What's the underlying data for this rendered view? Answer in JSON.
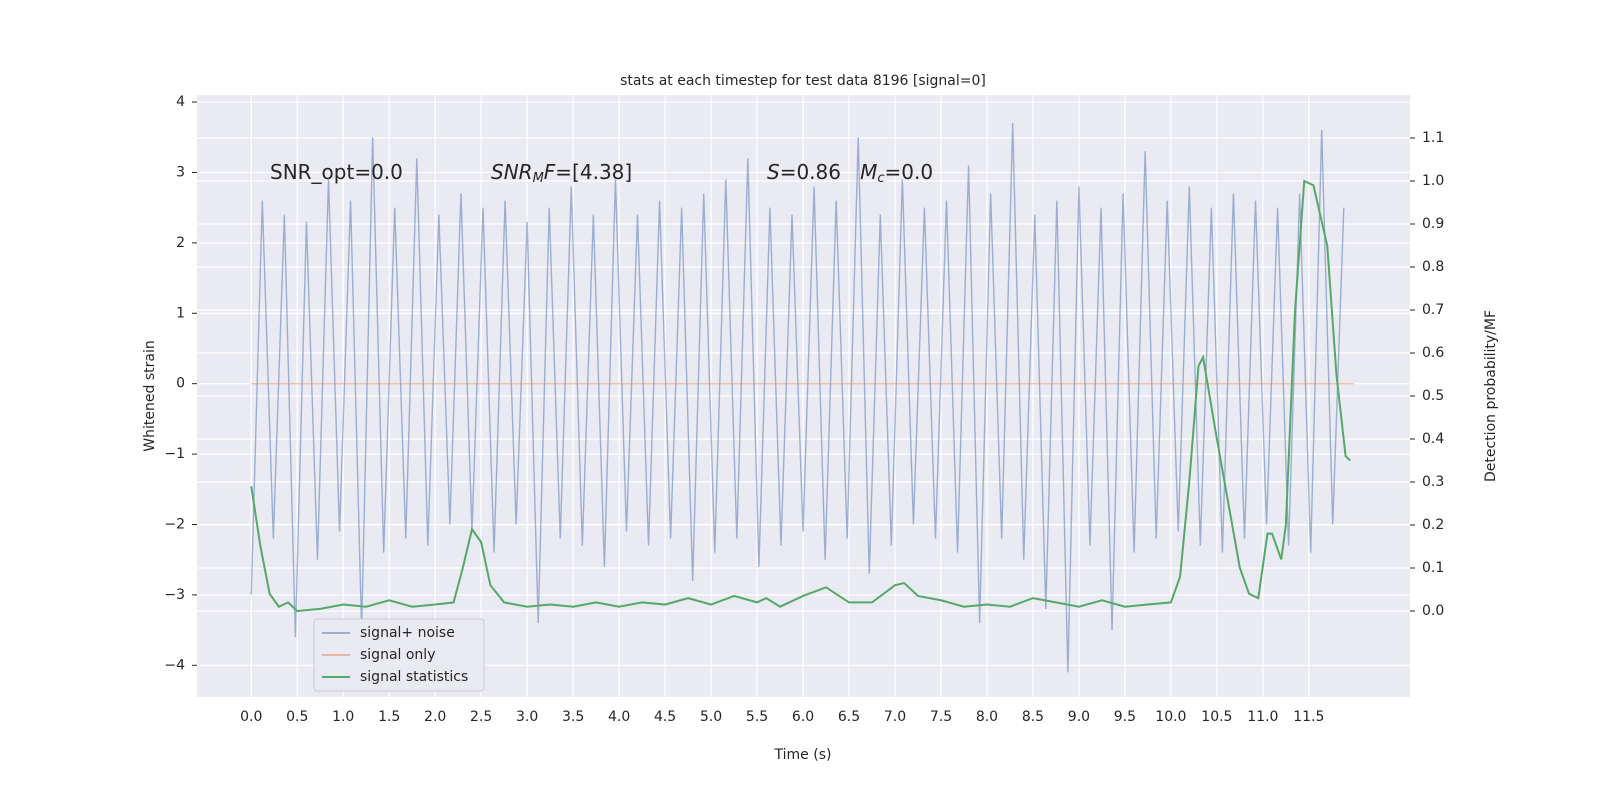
{
  "chart_data": {
    "type": "line",
    "title": "stats at each timestep for test data 8196 [signal=0]",
    "xlabel": "Time (s)",
    "ylabel": "Whitened strain",
    "y2label": "Detection probability/MF",
    "xlim": [
      -0.59,
      12.6
    ],
    "ylim": [
      -4.45,
      4.1
    ],
    "y2lim": [
      -0.2,
      1.2
    ],
    "xticks": [
      {
        "value": 0,
        "label": "0.0"
      },
      0.5,
      {
        "value": 1,
        "label": "1.0"
      },
      1.5,
      {
        "value": 2,
        "label": "2.0"
      },
      2.5,
      {
        "value": 3,
        "label": "3.0"
      },
      3.5,
      {
        "value": 4,
        "label": "4.0"
      },
      4.5,
      {
        "value": 5,
        "label": "5.0"
      },
      5.5,
      {
        "value": 6,
        "label": "6.0"
      },
      6.5,
      {
        "value": 7,
        "label": "7.0"
      },
      7.5,
      {
        "value": 8,
        "label": "8.0"
      },
      8.5,
      {
        "value": 9,
        "label": "9.0"
      },
      9.5,
      {
        "value": 10,
        "label": "10.0"
      },
      10.5,
      {
        "value": 11,
        "label": "11.0"
      },
      11.5
    ],
    "yticks": [
      {
        "value": -4,
        "label": "−4"
      },
      {
        "value": -3,
        "label": "−3"
      },
      {
        "value": -2,
        "label": "−2"
      },
      {
        "value": -1,
        "label": "−1"
      },
      0,
      1,
      2,
      3,
      4
    ],
    "y2ticks": [
      {
        "value": 0,
        "label": "0.0"
      },
      0.1,
      0.2,
      0.3,
      0.4,
      0.5,
      0.6,
      0.7,
      0.8,
      0.9,
      {
        "value": 1,
        "label": "1.0"
      },
      1.1
    ],
    "grid": true,
    "legend": "lower left",
    "annotations": [
      [
        {
          "text": "SNR_opt=0.0"
        }
      ],
      [
        {
          "text": "SNR",
          "italic": true
        },
        {
          "text": "M",
          "italic": true,
          "sub": true
        },
        {
          "text": "F",
          "italic": true
        },
        {
          "text": "=[4.38]"
        }
      ],
      [
        {
          "text": "S",
          "italic": true
        },
        {
          "text": "=0.86   "
        },
        {
          "text": "M",
          "italic": true
        },
        {
          "text": "c",
          "italic": true,
          "sub": true
        },
        {
          "text": "=0.0"
        }
      ]
    ],
    "series": [
      {
        "name": "signal+ noise",
        "color": "#4c72b0",
        "opacity": 0.5,
        "x": [
          0,
          0.12,
          0.24,
          0.36,
          0.48,
          0.6,
          0.72,
          0.84,
          0.96,
          1.08,
          1.2,
          1.32,
          1.44,
          1.56,
          1.68,
          1.8,
          1.92,
          2.04,
          2.16,
          2.28,
          2.4,
          2.52,
          2.64,
          2.76,
          2.88,
          3,
          3.12,
          3.24,
          3.36,
          3.48,
          3.6,
          3.72,
          3.84,
          3.96,
          4.08,
          4.2,
          4.32,
          4.44,
          4.56,
          4.68,
          4.8,
          4.92,
          5.04,
          5.16,
          5.28,
          5.4,
          5.52,
          5.64,
          5.76,
          5.88,
          6,
          6.12,
          6.24,
          6.36,
          6.48,
          6.6,
          6.72,
          6.84,
          6.96,
          7.08,
          7.2,
          7.32,
          7.44,
          7.56,
          7.68,
          7.8,
          7.92,
          8.04,
          8.16,
          8.28,
          8.4,
          8.52,
          8.64,
          8.76,
          8.88,
          9,
          9.12,
          9.24,
          9.36,
          9.48,
          9.6,
          9.72,
          9.84,
          9.96,
          10.08,
          10.2,
          10.32,
          10.44,
          10.56,
          10.68,
          10.8,
          10.92,
          11.04,
          11.16,
          11.28,
          11.4,
          11.52,
          11.64,
          11.76,
          11.88
        ],
        "values": [
          -3.0,
          2.6,
          -2.2,
          2.4,
          -3.6,
          2.3,
          -2.5,
          2.9,
          -2.1,
          2.6,
          -3.5,
          3.5,
          -2.4,
          2.5,
          -2.2,
          3.2,
          -2.3,
          2.4,
          -2.0,
          2.7,
          -2.1,
          2.5,
          -2.4,
          2.6,
          -2.0,
          2.3,
          -3.4,
          2.5,
          -2.2,
          2.8,
          -2.3,
          2.4,
          -2.6,
          2.9,
          -2.1,
          2.4,
          -2.3,
          2.6,
          -2.2,
          2.5,
          -2.8,
          2.7,
          -2.4,
          2.9,
          -2.2,
          3.2,
          -2.6,
          2.5,
          -2.3,
          2.4,
          -2.1,
          2.8,
          -2.5,
          2.6,
          -2.2,
          3.5,
          -2.7,
          2.4,
          -2.3,
          2.9,
          -2.0,
          2.5,
          -2.2,
          2.6,
          -2.4,
          3.1,
          -3.4,
          2.7,
          -2.2,
          3.7,
          -2.5,
          2.4,
          -3.2,
          2.6,
          -4.1,
          2.8,
          -2.3,
          2.5,
          -3.5,
          2.7,
          -2.4,
          3.3,
          -2.2,
          2.6,
          -2.1,
          2.8,
          -2.3,
          2.5,
          -2.4,
          2.7,
          -2.2,
          2.6,
          -2.0,
          2.5,
          -2.3,
          2.7,
          -2.4,
          3.6,
          -2.0,
          2.5
        ]
      },
      {
        "name": "signal only",
        "color": "#dd8452",
        "opacity": 0.5,
        "x": [
          0,
          11.99
        ],
        "values": [
          0,
          0
        ]
      },
      {
        "name": "signal statistics",
        "color": "#55a868",
        "opacity": 1,
        "axis": "y2",
        "x": [
          0,
          0.1,
          0.2,
          0.3,
          0.4,
          0.5,
          0.75,
          1,
          1.25,
          1.5,
          1.75,
          2,
          2.2,
          2.3,
          2.4,
          2.5,
          2.6,
          2.75,
          3,
          3.25,
          3.5,
          3.75,
          4,
          4.25,
          4.5,
          4.75,
          5,
          5.25,
          5.5,
          5.6,
          5.75,
          6,
          6.25,
          6.5,
          6.75,
          7,
          7.1,
          7.25,
          7.5,
          7.75,
          8,
          8.25,
          8.5,
          8.75,
          9,
          9.25,
          9.5,
          9.75,
          10,
          10.1,
          10.2,
          10.3,
          10.35,
          10.5,
          10.75,
          10.85,
          10.95,
          11.05,
          11.1,
          11.2,
          11.25,
          11.35,
          11.45,
          11.55,
          11.7,
          11.8,
          11.9,
          11.95
        ],
        "values": [
          0.29,
          0.15,
          0.04,
          0.01,
          0.02,
          0.0,
          0.005,
          0.015,
          0.01,
          0.025,
          0.01,
          0.015,
          0.02,
          0.1,
          0.19,
          0.16,
          0.06,
          0.02,
          0.01,
          0.015,
          0.01,
          0.02,
          0.01,
          0.02,
          0.015,
          0.03,
          0.015,
          0.035,
          0.02,
          0.03,
          0.01,
          0.035,
          0.055,
          0.02,
          0.02,
          0.06,
          0.065,
          0.035,
          0.025,
          0.01,
          0.015,
          0.01,
          0.03,
          0.02,
          0.01,
          0.025,
          0.01,
          0.015,
          0.02,
          0.08,
          0.3,
          0.57,
          0.59,
          0.4,
          0.1,
          0.04,
          0.03,
          0.18,
          0.18,
          0.12,
          0.2,
          0.7,
          1.0,
          0.99,
          0.85,
          0.55,
          0.36,
          0.35
        ]
      }
    ]
  }
}
